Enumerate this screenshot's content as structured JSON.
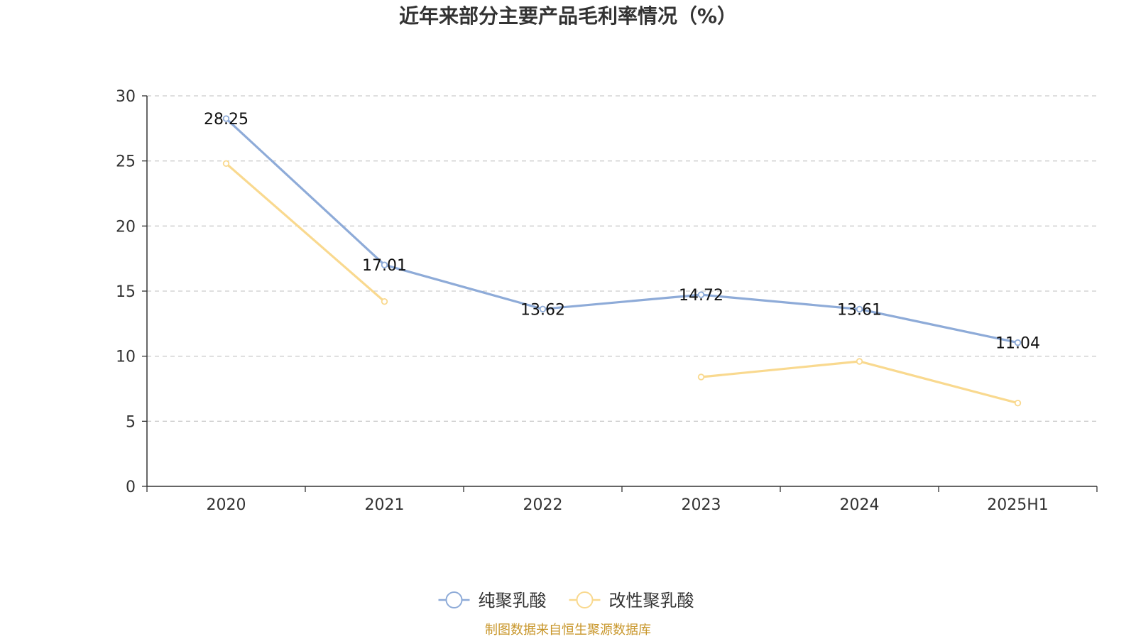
{
  "chart_data": {
    "type": "line",
    "title": "近年来部分主要产品毛利率情况（%）",
    "categories": [
      "2020",
      "2021",
      "2022",
      "2023",
      "2024",
      "2025H1"
    ],
    "ylim": [
      0,
      30
    ],
    "yticks": [
      0,
      5,
      10,
      15,
      20,
      25,
      30
    ],
    "grid": true,
    "legend_position": "bottom",
    "series": [
      {
        "name": "纯聚乳酸",
        "color": "#8eabd8",
        "values": [
          28.25,
          17.01,
          13.62,
          14.72,
          13.61,
          11.04
        ],
        "labels": [
          "28.25",
          "17.01",
          "13.62",
          "14.72",
          "13.61",
          "11.04"
        ]
      },
      {
        "name": "改性聚乳酸",
        "color": "#f9d98f",
        "values": [
          24.8,
          14.2,
          null,
          8.4,
          9.6,
          6.4
        ],
        "labels": null
      }
    ]
  },
  "source_note": "制图数据来自恒生聚源数据库",
  "colors": {
    "axis": "#333333",
    "grid": "#cccccc",
    "source": "#c8962a"
  }
}
